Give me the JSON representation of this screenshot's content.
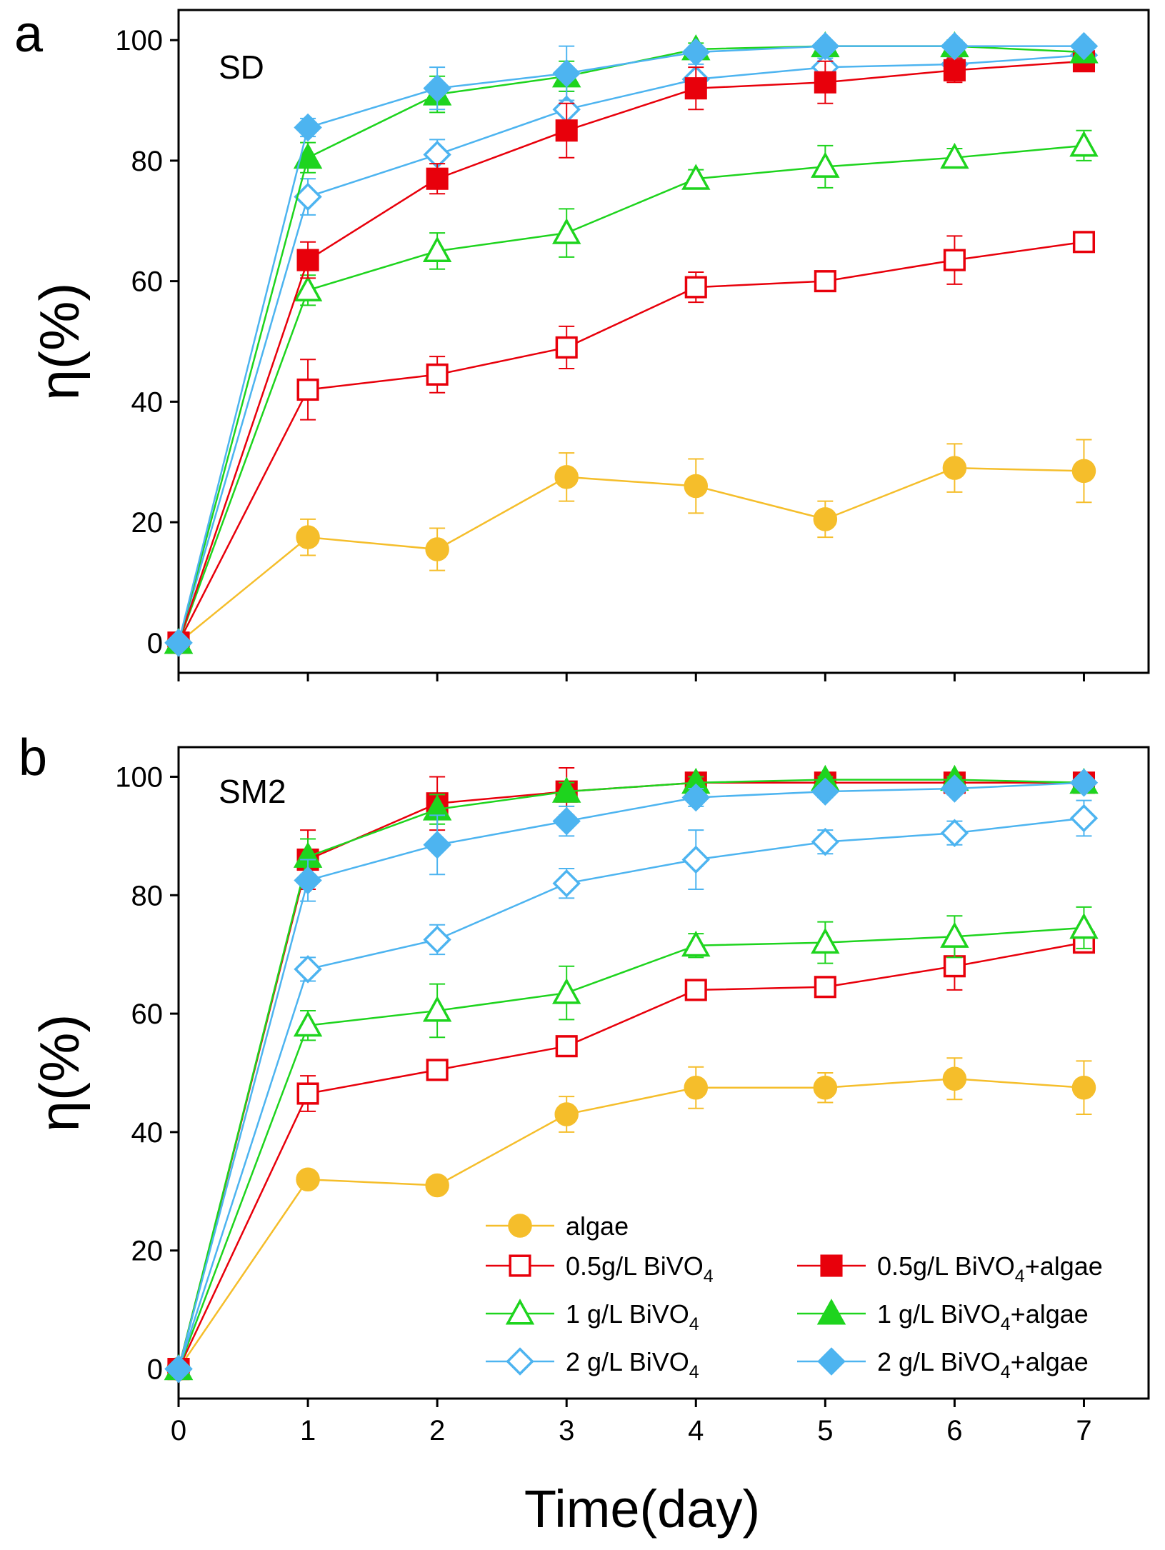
{
  "chart_data": [
    {
      "panel": "a",
      "type": "line",
      "title": "SD",
      "xlabel": "",
      "ylabel": "η(%)",
      "x": [
        0,
        1,
        2,
        3,
        4,
        5,
        6,
        7
      ],
      "xlim": [
        0,
        7.5
      ],
      "ylim": [
        -5,
        105
      ],
      "xticks": [],
      "yticks": [
        0,
        20,
        40,
        60,
        80,
        100
      ],
      "series": [
        {
          "key": "algae",
          "name": "algae",
          "color": "#F5BE2B",
          "marker": "circle",
          "filled": true,
          "values": [
            0,
            17.5,
            15.5,
            27.5,
            26,
            20.5,
            29,
            28.5
          ],
          "errors": [
            0,
            3,
            3.5,
            4,
            4.5,
            3,
            4,
            5.2
          ]
        },
        {
          "key": "bivo05",
          "name": "0.5g/L BiVO4",
          "color": "#E8000B",
          "marker": "square",
          "filled": false,
          "values": [
            0,
            42,
            44.5,
            49,
            59,
            60,
            63.5,
            66.5
          ],
          "errors": [
            0,
            5,
            3,
            3.5,
            2.5,
            1.5,
            4,
            1.5
          ]
        },
        {
          "key": "bivo1",
          "name": "1 g/L BiVO4",
          "color": "#1ED41E",
          "marker": "triangle",
          "filled": false,
          "values": [
            0,
            58.5,
            65,
            68,
            77,
            79,
            80.5,
            82.5
          ],
          "errors": [
            0,
            2.5,
            3,
            4,
            1.5,
            3.5,
            1.5,
            2.5
          ]
        },
        {
          "key": "bivo2",
          "name": "2 g/L BiVO4",
          "color": "#4DB4F0",
          "marker": "diamond",
          "filled": false,
          "values": [
            0,
            74,
            81,
            88.5,
            93.5,
            95.5,
            96,
            97.5
          ],
          "errors": [
            0,
            3,
            2.5,
            3,
            2.5,
            1.5,
            1.5,
            1
          ]
        },
        {
          "key": "bivo05_algae",
          "name": "0.5g/L BiVO4+algae",
          "color": "#E8000B",
          "marker": "square",
          "filled": true,
          "values": [
            0,
            63.5,
            77,
            85,
            92,
            93,
            95,
            96.5
          ],
          "errors": [
            0,
            3,
            2.5,
            4.5,
            3.5,
            3.5,
            2,
            1.5
          ]
        },
        {
          "key": "bivo1_algae",
          "name": "1 g/L BiVO4+algae",
          "color": "#1ED41E",
          "marker": "triangle",
          "filled": true,
          "values": [
            0,
            80.5,
            91,
            94,
            98.5,
            99,
            99,
            98
          ],
          "errors": [
            0,
            2.5,
            3,
            2.5,
            1,
            0.5,
            1,
            1
          ]
        },
        {
          "key": "bivo2_algae",
          "name": "2 g/L BiVO4+algae",
          "color": "#4DB4F0",
          "marker": "diamond",
          "filled": true,
          "values": [
            0,
            85.5,
            92,
            94.5,
            98,
            99,
            99,
            99
          ],
          "errors": [
            0,
            1.5,
            3.5,
            4.5,
            1,
            0.5,
            0.5,
            0.5
          ]
        }
      ]
    },
    {
      "panel": "b",
      "type": "line",
      "title": "SM2",
      "xlabel": "Time(day)",
      "ylabel": "η(%)",
      "x": [
        0,
        1,
        2,
        3,
        4,
        5,
        6,
        7
      ],
      "xlim": [
        0,
        7.5
      ],
      "ylim": [
        -5,
        105
      ],
      "xticks": [
        0,
        1,
        2,
        3,
        4,
        5,
        6,
        7
      ],
      "yticks": [
        0,
        20,
        40,
        60,
        80,
        100
      ],
      "legend_location": "lower-right",
      "series": [
        {
          "key": "algae",
          "name": "algae",
          "color": "#F5BE2B",
          "marker": "circle",
          "filled": true,
          "values": [
            0,
            32,
            31,
            43,
            47.5,
            47.5,
            49,
            47.5
          ],
          "errors": [
            0,
            1,
            1,
            3,
            3.5,
            2.5,
            3.5,
            4.5
          ]
        },
        {
          "key": "bivo05",
          "name": "0.5g/L BiVO4",
          "color": "#E8000B",
          "marker": "square",
          "filled": false,
          "values": [
            0,
            46.5,
            50.5,
            54.5,
            64,
            64.5,
            68,
            72
          ],
          "errors": [
            0,
            3,
            1.5,
            1.5,
            1.5,
            1.5,
            4,
            1.5
          ]
        },
        {
          "key": "bivo1",
          "name": "1 g/L BiVO4",
          "color": "#1ED41E",
          "marker": "triangle",
          "filled": false,
          "values": [
            0,
            58,
            60.5,
            63.5,
            71.5,
            72,
            73,
            74.5
          ],
          "errors": [
            0,
            2.5,
            4.5,
            4.5,
            2,
            3.5,
            3.5,
            3.5
          ]
        },
        {
          "key": "bivo2",
          "name": "2 g/L BiVO4",
          "color": "#4DB4F0",
          "marker": "diamond",
          "filled": false,
          "values": [
            0,
            67.5,
            72.5,
            82,
            86,
            89,
            90.5,
            93
          ],
          "errors": [
            0,
            2,
            2.5,
            2.5,
            5,
            2,
            2,
            3
          ]
        },
        {
          "key": "bivo05_algae",
          "name": "0.5g/L BiVO4+algae",
          "color": "#E8000B",
          "marker": "square",
          "filled": true,
          "values": [
            0,
            86,
            95.5,
            97.5,
            99,
            99,
            99,
            99
          ],
          "errors": [
            0,
            5,
            4.5,
            4,
            1.5,
            1,
            1,
            1
          ]
        },
        {
          "key": "bivo1_algae",
          "name": "1 g/L BiVO4+algae",
          "color": "#1ED41E",
          "marker": "triangle",
          "filled": true,
          "values": [
            0,
            86.5,
            94.5,
            97.5,
            99,
            99.5,
            99.5,
            99
          ],
          "errors": [
            0,
            3,
            2.5,
            1.5,
            1,
            0.5,
            0.5,
            0.5
          ]
        },
        {
          "key": "bivo2_algae",
          "name": "2 g/L BiVO4+algae",
          "color": "#4DB4F0",
          "marker": "diamond",
          "filled": true,
          "values": [
            0,
            82.5,
            88.5,
            92.5,
            96.5,
            97.5,
            98,
            99
          ],
          "errors": [
            0,
            3.5,
            5,
            2.5,
            1.5,
            1,
            1,
            1
          ]
        }
      ]
    }
  ]
}
